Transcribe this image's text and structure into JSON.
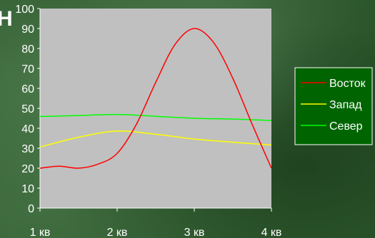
{
  "corner_text": "Н",
  "chart_data": {
    "type": "line",
    "categories": [
      "1 кв",
      "2 кв",
      "3 кв",
      "4 кв"
    ],
    "ylim": [
      0,
      100
    ],
    "yticks": [
      0,
      10,
      20,
      30,
      40,
      50,
      60,
      70,
      80,
      90,
      100
    ],
    "grid": false,
    "legend_position": "right",
    "plot_background": "#c0c0c0",
    "series": [
      {
        "name": "Восток",
        "color": "#ff0000",
        "x": [
          1,
          1.25,
          1.5,
          1.75,
          2,
          2.25,
          2.5,
          2.75,
          3,
          3.25,
          3.5,
          3.75,
          4
        ],
        "values": [
          20,
          21,
          20,
          22,
          27.4,
          42,
          63,
          82,
          90,
          83,
          65,
          42,
          20
        ]
      },
      {
        "name": "Запад",
        "color": "#ffff00",
        "x": [
          1,
          1.5,
          2,
          2.5,
          3,
          3.5,
          4
        ],
        "values": [
          30.6,
          35.5,
          38.6,
          37,
          34.6,
          33,
          31.6
        ]
      },
      {
        "name": "Север",
        "color": "#00ff00",
        "x": [
          1,
          1.5,
          2,
          2.5,
          3,
          3.5,
          4
        ],
        "values": [
          45.9,
          46.4,
          46.9,
          46,
          45,
          44.6,
          43.9
        ]
      }
    ]
  }
}
